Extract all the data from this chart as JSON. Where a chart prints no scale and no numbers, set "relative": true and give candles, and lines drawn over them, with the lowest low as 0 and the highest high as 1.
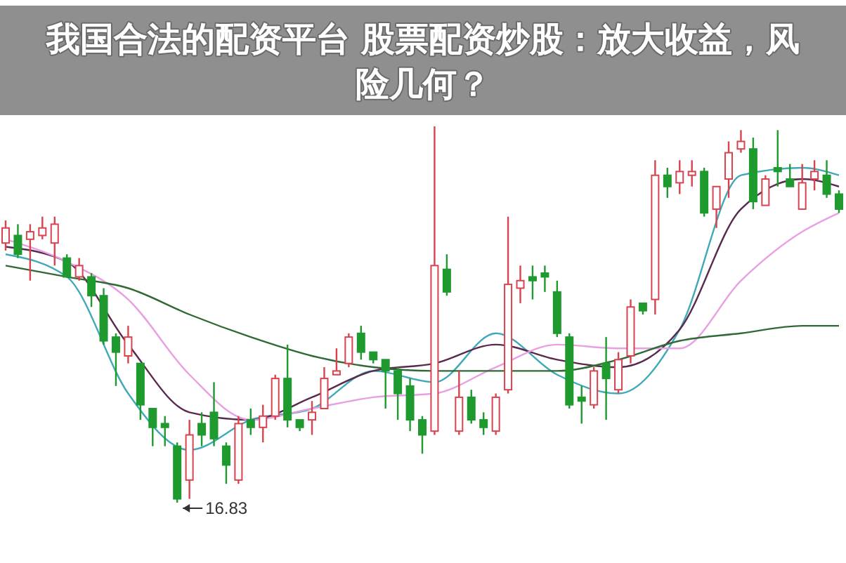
{
  "chart_data": {
    "type": "candlestick",
    "title": "我国合法的配资平台 股票配资炒股：放大收益，风险几何？",
    "relative": true,
    "colors": [
      "#d9434f",
      "#1e9a2e",
      "#d9434f",
      "#d9434f",
      "#d9434f",
      "#1e9a2e",
      "#d9434f",
      "#1e9a2e",
      "#1e9a2e",
      "#1e9a2e",
      "#d9434f",
      "#1e9a2e",
      "#1e9a2e",
      "#1e9a2e",
      "#1e9a2e",
      "#d9434f",
      "#1e9a2e",
      "#1e9a2e",
      "#1e9a2e",
      "#d9434f",
      "#1e9a2e",
      "#d9434f",
      "#d9434f",
      "#1e9a2e",
      "#1e9a2e",
      "#d9434f",
      "#d9434f",
      "#d9434f",
      "#d9434f",
      "#1e9a2e",
      "#1e9a2e",
      "#1e9a2e",
      "#1e9a2e",
      "#1e9a2e",
      "#1e9a2e",
      "#d9434f",
      "#1e9a2e",
      "#d9434f",
      "#1e9a2e",
      "#1e9a2e",
      "#d9434f",
      "#d9434f",
      "#d9434f",
      "#1e9a2e",
      "#1e9a2e",
      "#1e9a2e",
      "#1e9a2e",
      "#1e9a2e",
      "#d9434f",
      "#1e9a2e",
      "#d9434f",
      "#d9434f",
      "#1e9a2e",
      "#d9434f",
      "#1e9a2e",
      "#d9434f",
      "#d9434f",
      "#1e9a2e",
      "#d9434f",
      "#d9434f",
      "#d9434f",
      "#1e9a2e",
      "#d9434f",
      "#1e9a2e",
      "#1e9a2e",
      "#d9434f",
      "#d9434f",
      "#1e9a2e",
      "#1e9a2e"
    ],
    "annotations": [
      "16.83"
    ],
    "categories": [
      null,
      null,
      null,
      null,
      null,
      null,
      null,
      null,
      null,
      null,
      null,
      null,
      null,
      null,
      null,
      null,
      null,
      null,
      null,
      null,
      null,
      null,
      null,
      null,
      null,
      null,
      null,
      null,
      null,
      null,
      null,
      null,
      null,
      null,
      null,
      null,
      null,
      null,
      null,
      null,
      null,
      null,
      null,
      null,
      null,
      null,
      null,
      null,
      null,
      null,
      null,
      null,
      null,
      null,
      null,
      null,
      null,
      null,
      null,
      null,
      null,
      null,
      null,
      null,
      null,
      null,
      null,
      null,
      null
    ],
    "ohlc": [
      [
        0.69,
        0.75,
        0.67,
        0.73
      ],
      [
        0.71,
        0.74,
        0.65,
        0.66
      ],
      [
        0.7,
        0.74,
        0.59,
        0.72
      ],
      [
        0.71,
        0.76,
        0.7,
        0.73
      ],
      [
        0.69,
        0.76,
        0.63,
        0.74
      ],
      [
        0.65,
        0.66,
        0.6,
        0.6
      ],
      [
        0.6,
        0.65,
        0.59,
        0.63
      ],
      [
        0.6,
        0.61,
        0.52,
        0.55
      ],
      [
        0.55,
        0.57,
        0.42,
        0.43
      ],
      [
        0.44,
        0.45,
        0.31,
        0.4
      ],
      [
        0.39,
        0.47,
        0.37,
        0.44
      ],
      [
        0.37,
        0.37,
        0.22,
        0.26
      ],
      [
        0.25,
        0.25,
        0.15,
        0.2
      ],
      [
        0.21,
        0.23,
        0.15,
        0.2
      ],
      [
        0.15,
        0.16,
        0,
        0.01
      ],
      [
        0.06,
        0.22,
        0.01,
        0.18
      ],
      [
        0.21,
        0.24,
        0.15,
        0.18
      ],
      [
        0.24,
        0.32,
        0.15,
        0.17
      ],
      [
        0.15,
        0.16,
        0.05,
        0.1
      ],
      [
        0.06,
        0.23,
        0.05,
        0.21
      ],
      [
        0.22,
        0.25,
        0.18,
        0.2
      ],
      [
        0.2,
        0.26,
        0.16,
        0.23
      ],
      [
        0.23,
        0.34,
        0.22,
        0.33
      ],
      [
        0.33,
        0.42,
        0.2,
        0.22
      ],
      [
        0.22,
        0.22,
        0.19,
        0.2
      ],
      [
        0.22,
        0.27,
        0.18,
        0.24
      ],
      [
        0.25,
        0.36,
        0.25,
        0.33
      ],
      [
        0.34,
        0.41,
        0.34,
        0.35
      ],
      [
        0.37,
        0.45,
        0.36,
        0.44
      ],
      [
        0.45,
        0.47,
        0.38,
        0.4
      ],
      [
        0.4,
        0.4,
        0.37,
        0.38
      ],
      [
        0.38,
        0.38,
        0.25,
        0.35
      ],
      [
        0.35,
        0.36,
        0.22,
        0.29
      ],
      [
        0.31,
        0.33,
        0.19,
        0.22
      ],
      [
        0.22,
        0.23,
        0.13,
        0.18
      ],
      [
        0.19,
        1,
        0.18,
        0.63
      ],
      [
        0.62,
        0.66,
        0.55,
        0.56
      ],
      [
        0.19,
        0.35,
        0.18,
        0.28
      ],
      [
        0.28,
        0.3,
        0.21,
        0.22
      ],
      [
        0.22,
        0.24,
        0.18,
        0.2
      ],
      [
        0.19,
        0.29,
        0.18,
        0.28
      ],
      [
        0.3,
        0.76,
        0.29,
        0.58
      ],
      [
        0.57,
        0.63,
        0.53,
        0.59
      ],
      [
        0.6,
        0.63,
        0.54,
        0.59
      ],
      [
        0.61,
        0.63,
        0.56,
        0.6
      ],
      [
        0.56,
        0.59,
        0.44,
        0.45
      ],
      [
        0.44,
        0.45,
        0.25,
        0.26
      ],
      [
        0.28,
        0.31,
        0.21,
        0.27
      ],
      [
        0.26,
        0.36,
        0.25,
        0.35
      ],
      [
        0.37,
        0.44,
        0.22,
        0.33
      ],
      [
        0.3,
        0.4,
        0.29,
        0.38
      ],
      [
        0.39,
        0.54,
        0.37,
        0.52
      ],
      [
        0.53,
        0.53,
        0.5,
        0.51
      ],
      [
        0.54,
        0.91,
        0.5,
        0.87
      ],
      [
        0.87,
        0.89,
        0.81,
        0.84
      ],
      [
        0.85,
        0.91,
        0.82,
        0.88
      ],
      [
        0.87,
        0.91,
        0.84,
        0.88
      ],
      [
        0.88,
        0.89,
        0.76,
        0.77
      ],
      [
        0.78,
        0.84,
        0.73,
        0.84
      ],
      [
        0.86,
        0.96,
        0.81,
        0.93
      ],
      [
        0.94,
        0.99,
        0.93,
        0.96
      ],
      [
        0.94,
        0.97,
        0.78,
        0.8
      ],
      [
        0.79,
        0.87,
        0.79,
        0.86
      ],
      [
        0.89,
        0.99,
        0.84,
        0.88
      ],
      [
        0.86,
        0.9,
        0.84,
        0.84
      ],
      [
        0.78,
        0.9,
        0.78,
        0.85
      ],
      [
        0.86,
        0.91,
        0.83,
        0.88
      ],
      [
        0.87,
        0.91,
        0.81,
        0.82
      ],
      [
        0.82,
        0.83,
        0.77,
        0.78
      ]
    ],
    "series": [
      {
        "type": "line",
        "color": "#3fa9b8",
        "values": [
          0.66,
          null,
          null,
          null,
          null,
          0.6,
          null,
          null,
          null,
          null,
          0.29,
          null,
          null,
          null,
          null,
          0.14,
          null,
          null,
          null,
          null,
          0.22,
          null,
          null,
          null,
          null,
          0.25,
          null,
          null,
          null,
          null,
          0.35,
          null,
          null,
          null,
          null,
          0.32,
          null,
          null,
          null,
          null,
          0.45,
          null,
          null,
          null,
          null,
          0.34,
          null,
          null,
          null,
          null,
          0.29,
          null,
          null,
          null,
          null,
          0.46,
          null,
          null,
          null,
          null,
          0.87,
          null,
          null,
          null,
          null,
          0.89,
          null,
          null,
          0.87
        ]
      },
      {
        "type": "line",
        "color": "#5a2a4e",
        "values": [
          0.68,
          null,
          null,
          null,
          null,
          0.64,
          null,
          null,
          null,
          null,
          0.42,
          null,
          null,
          null,
          null,
          0.24,
          null,
          null,
          null,
          null,
          0.22,
          null,
          null,
          null,
          null,
          0.28,
          null,
          null,
          null,
          null,
          0.35,
          null,
          null,
          null,
          null,
          0.37,
          null,
          null,
          null,
          null,
          0.42,
          null,
          null,
          null,
          null,
          0.38,
          null,
          null,
          null,
          null,
          0.36,
          null,
          null,
          null,
          null,
          0.46,
          null,
          null,
          null,
          null,
          0.78,
          null,
          null,
          null,
          null,
          0.86,
          null,
          null,
          0.84
        ]
      },
      {
        "type": "line",
        "color": "#e8a0e2",
        "values": [
          0.7,
          null,
          null,
          null,
          null,
          0.64,
          null,
          null,
          null,
          null,
          0.54,
          null,
          null,
          null,
          null,
          0.34,
          null,
          null,
          null,
          null,
          0.22,
          null,
          null,
          null,
          null,
          0.25,
          null,
          null,
          null,
          null,
          0.28,
          null,
          null,
          null,
          null,
          0.29,
          null,
          null,
          null,
          null,
          0.36,
          null,
          null,
          null,
          null,
          0.42,
          null,
          null,
          null,
          null,
          0.41,
          null,
          null,
          null,
          null,
          0.41,
          null,
          null,
          null,
          null,
          0.59,
          null,
          null,
          null,
          null,
          0.72,
          null,
          null,
          0.77
        ]
      },
      {
        "type": "line",
        "color": "#2f6a36",
        "values": [
          0.63,
          null,
          null,
          null,
          null,
          0.6,
          null,
          null,
          null,
          null,
          0.57,
          null,
          null,
          null,
          null,
          0.5,
          null,
          null,
          null,
          null,
          0.44,
          null,
          null,
          null,
          null,
          0.39,
          null,
          null,
          null,
          null,
          0.36,
          null,
          null,
          null,
          null,
          0.35,
          null,
          null,
          null,
          null,
          0.35,
          null,
          null,
          null,
          null,
          0.35,
          null,
          null,
          null,
          null,
          0.38,
          null,
          null,
          null,
          null,
          0.43,
          null,
          null,
          null,
          null,
          0.45,
          null,
          null,
          null,
          null,
          0.47,
          null,
          null,
          0.47
        ]
      }
    ]
  }
}
